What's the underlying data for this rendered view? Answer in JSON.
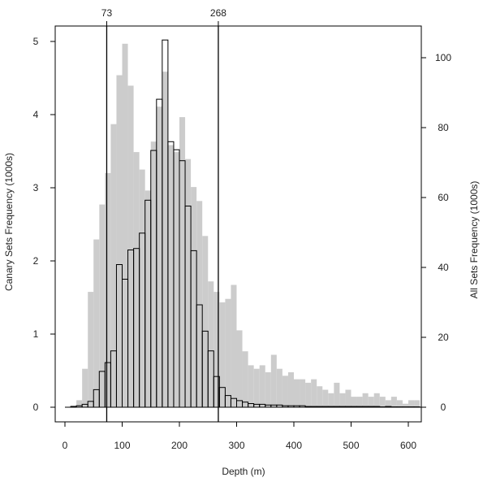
{
  "chart_data": {
    "type": "bar",
    "xlabel": "Depth (m)",
    "ylabel_left": "Canary Sets Frequency (1000s)",
    "ylabel_right": "All Sets Frequency (1000s)",
    "xlim": [
      0,
      620
    ],
    "ylim_left": [
      0,
      5.2
    ],
    "ylim_right": [
      0,
      108
    ],
    "x_ticks": [
      "0",
      "100",
      "200",
      "300",
      "400",
      "500",
      "600"
    ],
    "y_left_ticks": [
      "0",
      "1",
      "2",
      "3",
      "4",
      "5"
    ],
    "y_right_ticks": [
      "0",
      "20",
      "40",
      "60",
      "80",
      "100"
    ],
    "vlines": [
      {
        "x": 73,
        "label": "73"
      },
      {
        "x": 268,
        "label": "268"
      }
    ],
    "bin_width": 10,
    "colors": {
      "all_sets": "#cccccc",
      "canary_edge": "#000000",
      "canary_fill": "#ffffff",
      "frame": "#000000"
    },
    "series": [
      {
        "role": "all_sets",
        "axis": "right",
        "x": [
          0,
          10,
          20,
          30,
          40,
          50,
          60,
          70,
          80,
          90,
          100,
          110,
          120,
          130,
          140,
          150,
          160,
          170,
          180,
          190,
          200,
          210,
          220,
          230,
          240,
          250,
          260,
          270,
          280,
          290,
          300,
          310,
          320,
          330,
          340,
          350,
          360,
          370,
          380,
          390,
          400,
          410,
          420,
          430,
          440,
          450,
          460,
          470,
          480,
          490,
          500,
          510,
          520,
          530,
          540,
          550,
          560,
          570,
          580,
          590,
          600,
          610
        ],
        "values": [
          0,
          0.5,
          2,
          11,
          33,
          48,
          58,
          67,
          81,
          95,
          104,
          92,
          73,
          68,
          62,
          76,
          86,
          96,
          75,
          73,
          83,
          71,
          63,
          59,
          49,
          36,
          33,
          30,
          31,
          35,
          22,
          16,
          12,
          11,
          12,
          10,
          15,
          11,
          9,
          10,
          8,
          8,
          7,
          8,
          6,
          5,
          4,
          7,
          4,
          5,
          3,
          3,
          4,
          3,
          4,
          3,
          2,
          3,
          2,
          1,
          2,
          2
        ]
      },
      {
        "role": "canary",
        "axis": "left",
        "x": [
          0,
          10,
          20,
          30,
          40,
          50,
          60,
          70,
          80,
          90,
          100,
          110,
          120,
          130,
          140,
          150,
          160,
          170,
          180,
          190,
          200,
          210,
          220,
          230,
          240,
          250,
          260,
          270,
          280,
          290,
          300,
          310,
          320,
          330,
          340,
          350,
          360,
          370,
          380,
          390,
          400,
          410,
          420,
          430,
          440,
          450,
          460,
          470,
          480,
          490,
          500,
          510,
          520,
          530,
          540,
          550,
          560,
          570,
          580,
          590,
          600,
          610
        ],
        "values": [
          0,
          0.01,
          0.02,
          0.04,
          0.08,
          0.24,
          0.49,
          0.61,
          0.77,
          1.95,
          1.75,
          2.15,
          2.17,
          2.38,
          2.83,
          3.51,
          4.21,
          5.02,
          3.63,
          3.52,
          3.37,
          2.75,
          2.14,
          1.4,
          1.04,
          0.77,
          0.42,
          0.27,
          0.16,
          0.12,
          0.09,
          0.07,
          0.05,
          0.04,
          0.04,
          0.03,
          0.03,
          0.03,
          0.02,
          0.02,
          0.02,
          0.02,
          0.01,
          0.01,
          0.01,
          0.01,
          0.01,
          0.01,
          0.01,
          0.01,
          0.01,
          0.01,
          0.01,
          0.01,
          0.01,
          0.005,
          0.01,
          0.005,
          0.005,
          0.005,
          0.005,
          0.005
        ]
      }
    ]
  }
}
